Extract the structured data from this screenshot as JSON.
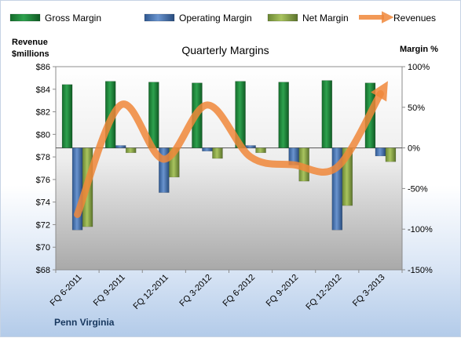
{
  "chart_data": {
    "type": "bar",
    "title": "Quarterly Margins",
    "left_axis": {
      "label_line1": "Revenue",
      "label_line2": "$millions",
      "min": 68,
      "max": 86,
      "step": 2
    },
    "right_axis": {
      "label": "Margin %",
      "min": -150,
      "max": 100,
      "step": 50
    },
    "categories": [
      "FQ 6-2011",
      "FQ 9-2011",
      "FQ 12-2011",
      "FQ 3-2012",
      "FQ 6-2012",
      "FQ 9-2012",
      "FQ 12-2012",
      "FQ 3-2013"
    ],
    "series": [
      {
        "name": "Gross Margin",
        "axis": "right",
        "kind": "bar",
        "color": "#1e8a3a",
        "values": [
          78,
          82,
          81,
          80,
          82,
          81,
          83,
          80
        ]
      },
      {
        "name": "Operating Margin",
        "axis": "right",
        "kind": "bar",
        "color": "#4a75b5",
        "values": [
          -101,
          3,
          -55,
          -4,
          3,
          -21,
          -101,
          -10
        ]
      },
      {
        "name": "Net Margin",
        "axis": "right",
        "kind": "bar",
        "color": "#8fad4a",
        "values": [
          -97,
          -6,
          -36,
          -13,
          -6,
          -41,
          -71,
          -17
        ]
      },
      {
        "name": "Revenues",
        "axis": "left",
        "kind": "line",
        "color": "#f0873a",
        "values": [
          72.9,
          82.6,
          77.8,
          82.6,
          78.0,
          77.3,
          77.1,
          83.6
        ]
      }
    ],
    "company": "Penn Virginia",
    "grid": false,
    "legend": "top"
  }
}
